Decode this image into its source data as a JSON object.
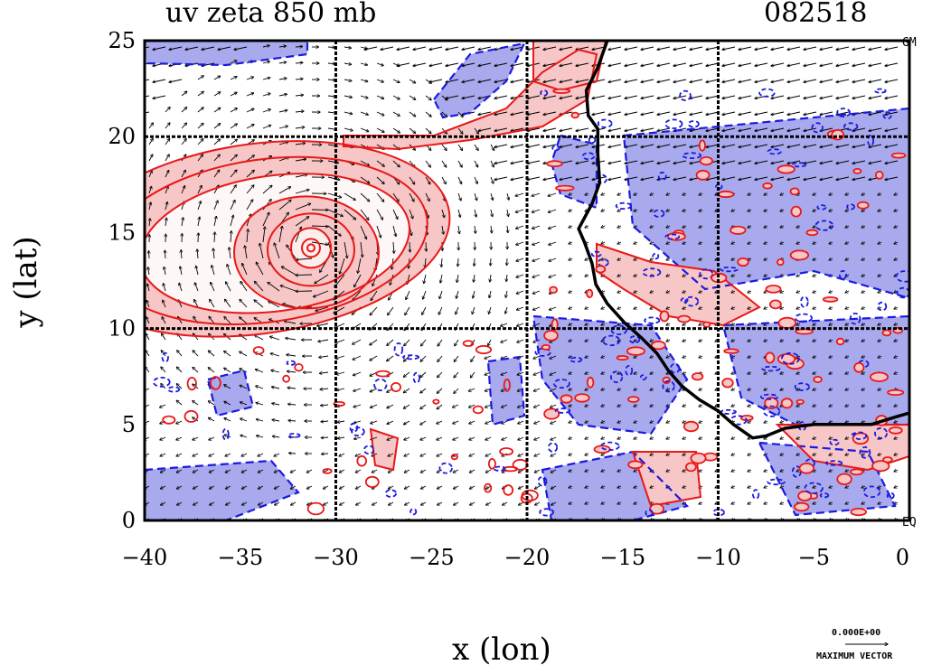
{
  "map": {
    "title_left": "uv zeta 850 mb",
    "title_right": "082518",
    "xlabel": "x (lon)",
    "ylabel": "y (lat)",
    "corner_top": "GM",
    "corner_bottom": "EQ",
    "ref_vector_value": "0.000E+00",
    "ref_vector_label": "MAXIMUM VECTOR",
    "extent": {
      "lon": [
        -40,
        0
      ],
      "lat": [
        0,
        25
      ]
    },
    "x_ticks": [
      "−40",
      "−35",
      "−30",
      "−25",
      "−20",
      "−15",
      "−10",
      "−5",
      "0"
    ],
    "y_ticks": [
      "0",
      "5",
      "10",
      "15",
      "20",
      "25"
    ],
    "grid_lons": [
      -30,
      -20,
      -10
    ],
    "grid_lats": [
      10,
      20
    ],
    "colors": {
      "positive_fill": "#f7c6c6",
      "positive_contour": "#e81818",
      "negative_fill": "#a9aaee",
      "negative_contour": "#1a1ae0",
      "coastline": "#000000"
    },
    "coastline": [
      [
        -15.8,
        25
      ],
      [
        -16.3,
        23.6
      ],
      [
        -16.9,
        22.4
      ],
      [
        -16.8,
        21.1
      ],
      [
        -16.3,
        20.4
      ],
      [
        -16.3,
        19.1
      ],
      [
        -16.2,
        17.6
      ],
      [
        -16.6,
        16.5
      ],
      [
        -17.3,
        15.2
      ],
      [
        -17.0,
        14.5
      ],
      [
        -16.6,
        13.4
      ],
      [
        -16.4,
        12.3
      ],
      [
        -15.8,
        11.3
      ],
      [
        -14.9,
        10.3
      ],
      [
        -14.0,
        9.5
      ],
      [
        -13.2,
        8.7
      ],
      [
        -12.6,
        7.8
      ],
      [
        -11.9,
        7.0
      ],
      [
        -11.0,
        6.3
      ],
      [
        -10.0,
        5.7
      ],
      [
        -9.2,
        5.0
      ],
      [
        -8.2,
        4.3
      ],
      [
        -7.5,
        4.4
      ],
      [
        -6.5,
        4.8
      ],
      [
        -5.0,
        5.0
      ],
      [
        -3.5,
        5.0
      ],
      [
        -2.0,
        5.0
      ],
      [
        -0.7,
        5.4
      ],
      [
        0,
        5.6
      ]
    ],
    "cyclone_center": {
      "lon": -31.3,
      "lat": 14.2
    }
  }
}
